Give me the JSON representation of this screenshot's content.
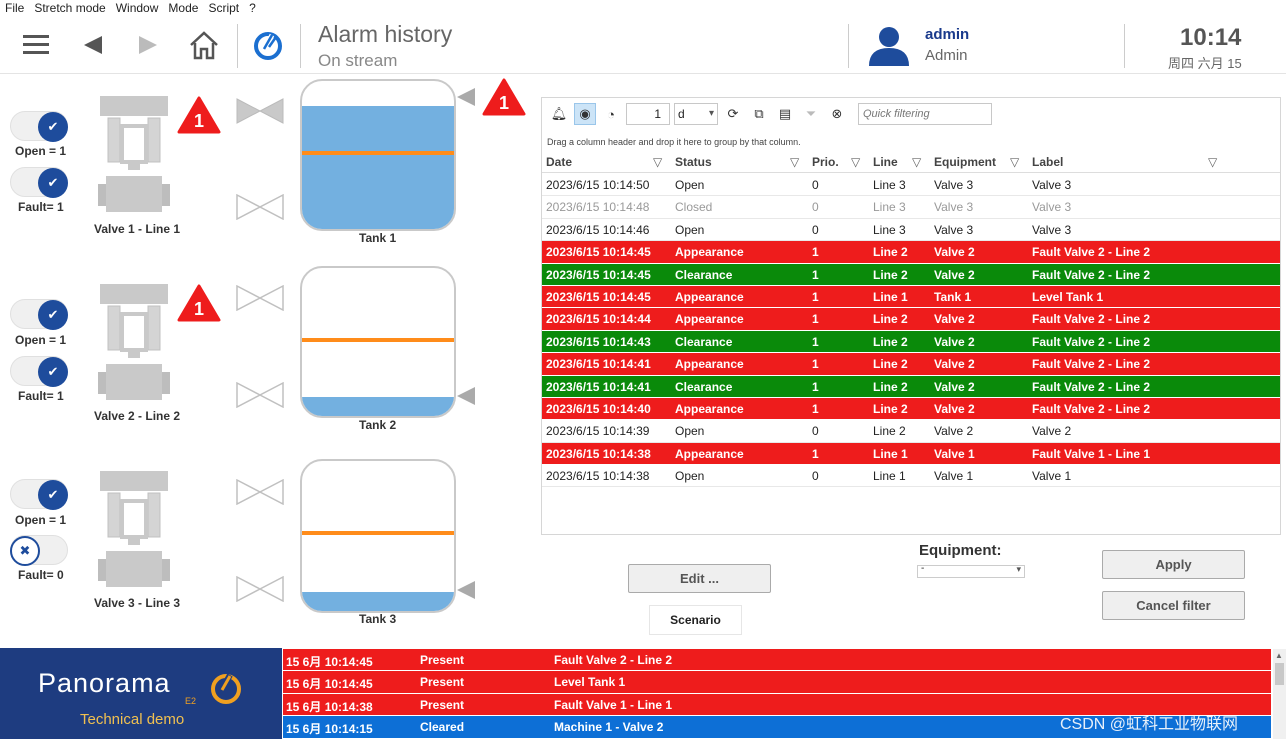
{
  "menu": [
    "File",
    "Stretch mode",
    "Window",
    "Mode",
    "Script",
    "?"
  ],
  "header": {
    "title": "Alarm history",
    "subtitle": "On stream",
    "user_name": "admin",
    "user_role": "Admin",
    "time": "10:14",
    "date": "周四 六月 15"
  },
  "synoptic": {
    "valves": [
      {
        "label": "Valve 1 - Line 1",
        "open_label": "Open = 1",
        "fault_label": "Fault= 1",
        "open": true,
        "fault": true,
        "alarm_count": "1"
      },
      {
        "label": "Valve 2 - Line 2",
        "open_label": "Open = 1",
        "fault_label": "Fault= 1",
        "open": true,
        "fault": true,
        "alarm_count": "1"
      },
      {
        "label": "Valve 3 - Line 3",
        "open_label": "Open = 1",
        "fault_label": "Fault= 0",
        "open": true,
        "fault": false,
        "alarm_count": ""
      }
    ],
    "tanks": [
      {
        "label": "Tank 1",
        "alarm_count": "1",
        "level_fraction": 0.83
      },
      {
        "label": "Tank 2",
        "alarm_count": "",
        "level_fraction": 0.13
      },
      {
        "label": "Tank 3",
        "alarm_count": "",
        "level_fraction": 0.13
      }
    ]
  },
  "grid": {
    "period_value": "1",
    "period_unit": "d",
    "quick_filter_placeholder": "Quick filtering",
    "drag_hint": "Drag a column header and drop it here to group by that column.",
    "columns": [
      "Date",
      "Status",
      "Prio.",
      "Line",
      "Equipment",
      "Label"
    ],
    "rows": [
      {
        "style": "white",
        "date": "2023/6/15 10:14:50",
        "status": "Open",
        "prio": "0",
        "line": "Line 3",
        "equipment": "Valve 3",
        "label": "Valve 3"
      },
      {
        "style": "grey",
        "date": "2023/6/15 10:14:48",
        "status": "Closed",
        "prio": "0",
        "line": "Line 3",
        "equipment": "Valve 3",
        "label": "Valve 3"
      },
      {
        "style": "white",
        "date": "2023/6/15 10:14:46",
        "status": "Open",
        "prio": "0",
        "line": "Line 3",
        "equipment": "Valve 3",
        "label": "Valve 3"
      },
      {
        "style": "red",
        "date": "2023/6/15 10:14:45",
        "status": "Appearance",
        "prio": "1",
        "line": "Line 2",
        "equipment": "Valve 2",
        "label": "Fault Valve 2 - Line 2"
      },
      {
        "style": "green",
        "date": "2023/6/15 10:14:45",
        "status": "Clearance",
        "prio": "1",
        "line": "Line 2",
        "equipment": "Valve 2",
        "label": "Fault Valve 2 - Line 2"
      },
      {
        "style": "red",
        "date": "2023/6/15 10:14:45",
        "status": "Appearance",
        "prio": "1",
        "line": "Line 1",
        "equipment": "Tank 1",
        "label": "Level Tank 1"
      },
      {
        "style": "red",
        "date": "2023/6/15 10:14:44",
        "status": "Appearance",
        "prio": "1",
        "line": "Line 2",
        "equipment": "Valve 2",
        "label": "Fault Valve 2 - Line 2"
      },
      {
        "style": "green",
        "date": "2023/6/15 10:14:43",
        "status": "Clearance",
        "prio": "1",
        "line": "Line 2",
        "equipment": "Valve 2",
        "label": "Fault Valve 2 - Line 2"
      },
      {
        "style": "red",
        "date": "2023/6/15 10:14:41",
        "status": "Appearance",
        "prio": "1",
        "line": "Line 2",
        "equipment": "Valve 2",
        "label": "Fault Valve 2 - Line 2"
      },
      {
        "style": "green",
        "date": "2023/6/15 10:14:41",
        "status": "Clearance",
        "prio": "1",
        "line": "Line 2",
        "equipment": "Valve 2",
        "label": "Fault Valve 2 - Line 2"
      },
      {
        "style": "red",
        "date": "2023/6/15 10:14:40",
        "status": "Appearance",
        "prio": "1",
        "line": "Line 2",
        "equipment": "Valve 2",
        "label": "Fault Valve 2 - Line 2"
      },
      {
        "style": "white",
        "date": "2023/6/15 10:14:39",
        "status": "Open",
        "prio": "0",
        "line": "Line 2",
        "equipment": "Valve 2",
        "label": "Valve 2"
      },
      {
        "style": "red",
        "date": "2023/6/15 10:14:38",
        "status": "Appearance",
        "prio": "1",
        "line": "Line 1",
        "equipment": "Valve 1",
        "label": "Fault Valve 1 - Line 1"
      },
      {
        "style": "white",
        "date": "2023/6/15 10:14:38",
        "status": "Open",
        "prio": "0",
        "line": "Line 1",
        "equipment": "Valve 1",
        "label": "Valve 1"
      }
    ]
  },
  "controls": {
    "edit_label": "Edit ...",
    "scenario_label": "Scenario",
    "equipment_label": "Equipment:",
    "equipment_value": "-",
    "apply_label": "Apply",
    "cancel_filter_label": "Cancel filter"
  },
  "footer": {
    "brand_name": "Panorama",
    "brand_version": "E2",
    "brand_sub": "Technical demo",
    "alarms": [
      {
        "style": "red",
        "time": "15 6月 10:14:45",
        "state": "Present",
        "label": "Fault Valve 2 - Line 2"
      },
      {
        "style": "red",
        "time": "15 6月 10:14:45",
        "state": "Present",
        "label": "Level Tank 1"
      },
      {
        "style": "red",
        "time": "15 6月 10:14:38",
        "state": "Present",
        "label": "Fault Valve 1 - Line 1"
      },
      {
        "style": "blue",
        "time": "15 6月 10:14:15",
        "state": "Cleared",
        "label": "Machine 1 - Valve 2"
      }
    ],
    "watermark": "CSDN @虹科工业物联网"
  },
  "colors": {
    "alarm_red": "#ee1c1c",
    "clear_green": "#0a8a0a",
    "brand_blue": "#1e3c80",
    "tank_blue": "#73b0e0",
    "level_orange": "#ff8c1a"
  }
}
